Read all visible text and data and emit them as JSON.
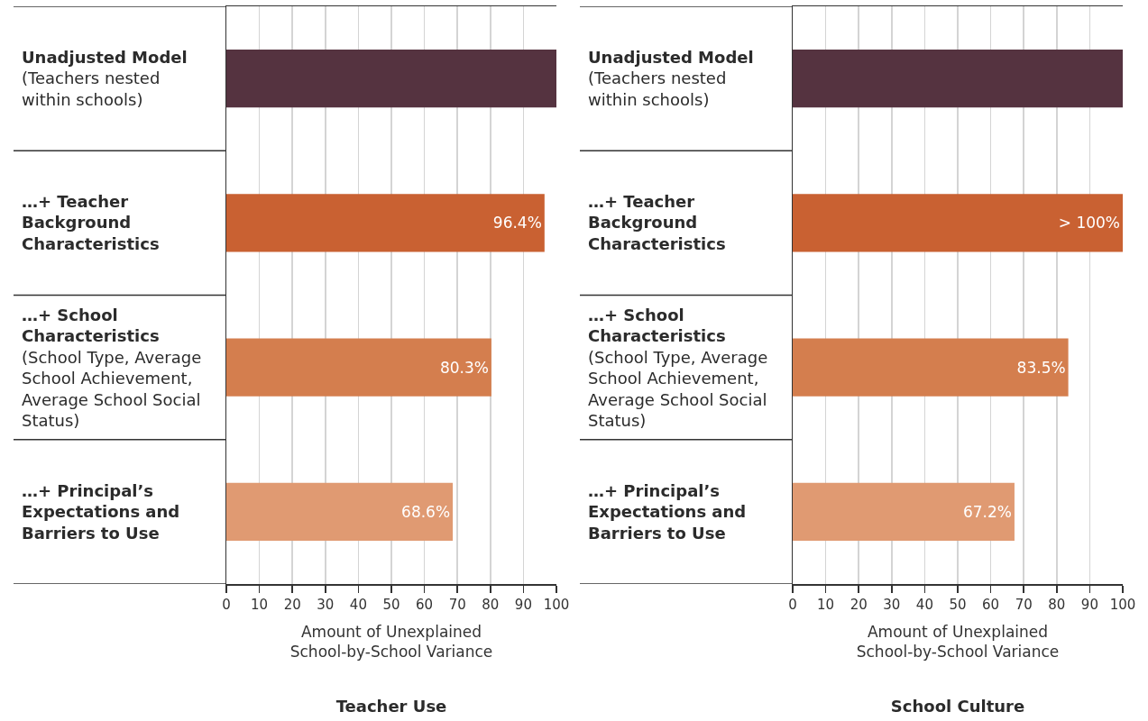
{
  "chart_data": [
    {
      "type": "bar",
      "orientation": "horizontal",
      "title": "Teacher Use",
      "xlabel": "Amount of Unexplained School-by-School Variance",
      "categories": [
        "Unadjusted Model (Teachers nested within schools)",
        "…+ Teacher Background Characteristics",
        "…+ School Characteristics (School Type, Average School Achievement, Average School Social Status)",
        "…+ Principal’s Expectations and Barriers to Use"
      ],
      "values": [
        100,
        96.4,
        80.3,
        68.6
      ],
      "colors": [
        "#553340",
        "#c96132",
        "#d47e4e",
        "#e09a72"
      ],
      "value_labels": [
        null,
        "96.4%",
        "80.3%",
        "68.6%"
      ],
      "xlim": [
        0,
        100
      ],
      "xticks": [
        0,
        10,
        20,
        30,
        40,
        50,
        60,
        70,
        80,
        90,
        100
      ],
      "grid": "x"
    },
    {
      "type": "bar",
      "orientation": "horizontal",
      "title": "School Culture",
      "xlabel": "Amount of Unexplained School-by-School Variance",
      "categories": [
        "Unadjusted Model (Teachers nested within schools)",
        "…+ Teacher Background Characteristics",
        "…+ School Characteristics (School Type, Average School Achievement, Average School Social Status)",
        "…+ Principal’s Expectations and Barriers to Use"
      ],
      "values": [
        100,
        100,
        83.5,
        67.2
      ],
      "colors": [
        "#553340",
        "#c96132",
        "#d47e4e",
        "#e09a72"
      ],
      "value_labels": [
        null,
        "> 100%",
        "83.5%",
        "67.2%"
      ],
      "xlim": [
        0,
        100
      ],
      "xticks": [
        0,
        10,
        20,
        30,
        40,
        50,
        60,
        70,
        80,
        90,
        100
      ],
      "grid": "x"
    }
  ]
}
